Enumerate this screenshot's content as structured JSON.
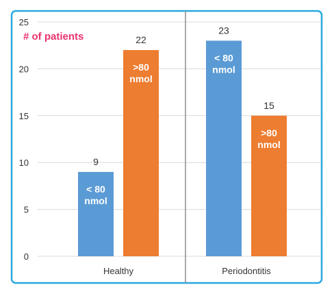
{
  "chart_data": {
    "type": "bar",
    "ylabel": "# of patients",
    "ylim": [
      0,
      25
    ],
    "yticks": [
      0,
      5,
      10,
      15,
      20,
      25
    ],
    "categories": [
      "Healthy",
      "Periodontitis"
    ],
    "series": [
      {
        "name": "< 80 nmol",
        "values": [
          9,
          23
        ],
        "inside_label_lines": [
          "< 80",
          "nmol"
        ]
      },
      {
        "name": ">80 nmol",
        "values": [
          22,
          15
        ],
        "inside_label_lines": [
          ">80",
          "nmol"
        ]
      }
    ],
    "grid": "horizontal",
    "legend": "none"
  },
  "colors": {
    "frame": "#29a9e0",
    "grid": "#d9d9d9",
    "divider": "#8c8c8c",
    "axis_text": "#333333",
    "ylabel": "#e8336d",
    "series": [
      "#5b9bd5",
      "#ed7d31"
    ],
    "inside_label": "#ffffff"
  }
}
